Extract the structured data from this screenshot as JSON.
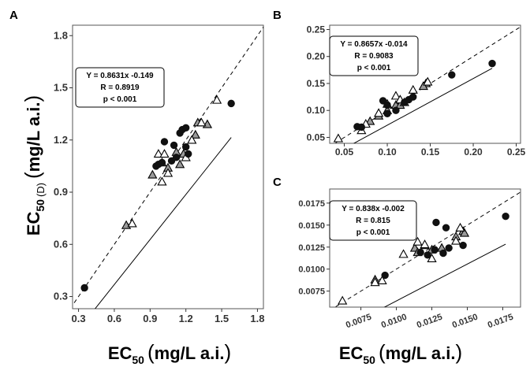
{
  "axis_title": {
    "x_prefix": "EC",
    "x_sub": "50",
    "x_unit": "mg/L a.i.",
    "y_prefix": "EC",
    "y_sub": "50",
    "y_inner": "(D)",
    "y_unit": "mg/L a.i."
  },
  "chart_data": [
    {
      "panel": "A",
      "type": "scatter",
      "xlabel": "EC50 (mg/L a.i.)",
      "ylabel": "EC50 (D) (mg/L a.i.)",
      "xlim": [
        0.25,
        1.85
      ],
      "ylim": [
        0.23,
        1.86
      ],
      "xticks": [
        0.3,
        0.6,
        0.9,
        1.2,
        1.5,
        1.8
      ],
      "yticks": [
        0.3,
        0.6,
        0.9,
        1.2,
        1.5,
        1.8
      ],
      "xtick_labels": [
        "0.3",
        "0.6",
        "0.9",
        "1.2",
        "1.5",
        "1.8"
      ],
      "ytick_labels": [
        "0.3",
        "0.6",
        "0.9",
        "1.2",
        "1.5",
        "1.8"
      ],
      "grid": false,
      "identity_line": true,
      "fit": {
        "slope": 0.8631,
        "intercept": -0.149,
        "x_range": [
          0.35,
          1.58
        ]
      },
      "annotation": [
        "Y = 0.8631x -0.149",
        "R = 0.8919",
        "p < 0.001"
      ],
      "series": [
        {
          "marker": "filled-circle",
          "points": [
            [
              0.35,
              0.35
            ],
            [
              0.95,
              1.05
            ],
            [
              0.97,
              1.06
            ],
            [
              1.0,
              1.07
            ],
            [
              1.02,
              1.19
            ],
            [
              1.1,
              1.17
            ],
            [
              1.15,
              1.24
            ],
            [
              1.17,
              1.26
            ],
            [
              1.2,
              1.27
            ],
            [
              1.2,
              1.16
            ],
            [
              1.22,
              1.12
            ],
            [
              1.08,
              1.08
            ],
            [
              1.12,
              1.1
            ],
            [
              1.58,
              1.41
            ]
          ]
        },
        {
          "marker": "grey-triangle",
          "points": [
            [
              0.7,
              0.71
            ],
            [
              0.92,
              1.0
            ],
            [
              1.0,
              1.07
            ],
            [
              1.05,
              1.04
            ],
            [
              1.12,
              1.13
            ],
            [
              1.15,
              1.06
            ],
            [
              1.18,
              1.12
            ],
            [
              1.28,
              1.23
            ],
            [
              1.3,
              1.3
            ],
            [
              1.38,
              1.29
            ]
          ]
        },
        {
          "marker": "open-triangle",
          "points": [
            [
              0.75,
              0.72
            ],
            [
              0.97,
              1.12
            ],
            [
              1.02,
              1.12
            ],
            [
              1.0,
              0.96
            ],
            [
              1.05,
              1.01
            ],
            [
              1.2,
              1.1
            ],
            [
              1.25,
              1.2
            ],
            [
              1.33,
              1.3
            ],
            [
              1.46,
              1.43
            ]
          ]
        }
      ]
    },
    {
      "panel": "B",
      "type": "scatter",
      "xlabel": "",
      "ylabel": "",
      "xlim": [
        0.033,
        0.255
      ],
      "ylim": [
        0.039,
        0.258
      ],
      "xticks": [
        0.05,
        0.1,
        0.15,
        0.2,
        0.25
      ],
      "yticks": [
        0.05,
        0.1,
        0.15,
        0.2,
        0.25
      ],
      "xtick_labels": [
        "0.05",
        "0.10",
        "0.15",
        "0.20",
        "0.25"
      ],
      "ytick_labels": [
        "0.05",
        "0.10",
        "0.15",
        "0.20",
        "0.25"
      ],
      "grid": false,
      "identity_line": true,
      "fit": {
        "slope": 0.8657,
        "intercept": -0.014,
        "x_range": [
          0.043,
          0.222
        ]
      },
      "annotation": [
        "Y = 0.8657x -0.014",
        "R = 0.9083",
        "p < 0.001"
      ],
      "series": [
        {
          "marker": "filled-circle",
          "points": [
            [
              0.065,
              0.07
            ],
            [
              0.07,
              0.069
            ],
            [
              0.095,
              0.118
            ],
            [
              0.1,
              0.11
            ],
            [
              0.1,
              0.094
            ],
            [
              0.11,
              0.1
            ],
            [
              0.12,
              0.115
            ],
            [
              0.125,
              0.12
            ],
            [
              0.13,
              0.125
            ],
            [
              0.175,
              0.166
            ],
            [
              0.222,
              0.187
            ]
          ]
        },
        {
          "marker": "grey-triangle",
          "points": [
            [
              0.08,
              0.08
            ],
            [
              0.09,
              0.09
            ],
            [
              0.1,
              0.1
            ],
            [
              0.11,
              0.11
            ],
            [
              0.115,
              0.11
            ],
            [
              0.12,
              0.115
            ],
            [
              0.145,
              0.15
            ],
            [
              0.142,
              0.145
            ]
          ]
        },
        {
          "marker": "open-triangle",
          "points": [
            [
              0.043,
              0.048
            ],
            [
              0.07,
              0.063
            ],
            [
              0.075,
              0.075
            ],
            [
              0.09,
              0.095
            ],
            [
              0.1,
              0.112
            ],
            [
              0.11,
              0.127
            ],
            [
              0.115,
              0.12
            ],
            [
              0.13,
              0.138
            ],
            [
              0.147,
              0.153
            ]
          ]
        }
      ]
    },
    {
      "panel": "C",
      "type": "scatter",
      "xlabel": "EC50 (mg/L a.i.)",
      "ylabel": "",
      "xlim": [
        0.0053,
        0.01875
      ],
      "ylim": [
        0.00568,
        0.0191
      ],
      "xticks": [
        0.0075,
        0.01,
        0.0125,
        0.015,
        0.0175
      ],
      "yticks": [
        0.0075,
        0.01,
        0.0125,
        0.015,
        0.0175
      ],
      "xtick_labels": [
        "0.0075",
        "0.0100",
        "0.0125",
        "0.0150",
        "0.0175"
      ],
      "ytick_labels": [
        "0.0075",
        "0.0100",
        "0.0125",
        "0.0150",
        "0.0175"
      ],
      "grid": false,
      "identity_line": true,
      "fit": {
        "slope": 0.838,
        "intercept": -0.002,
        "x_range": [
          0.0062,
          0.0177
        ]
      },
      "annotation": [
        "Y = 0.838x -0.002",
        "R = 0.815",
        "p < 0.001"
      ],
      "series": [
        {
          "marker": "filled-circle",
          "points": [
            [
              0.0092,
              0.0093
            ],
            [
              0.0117,
              0.0119
            ],
            [
              0.0122,
              0.0116
            ],
            [
              0.0127,
              0.0122
            ],
            [
              0.0128,
              0.0153
            ],
            [
              0.0135,
              0.0147
            ],
            [
              0.0137,
              0.0124
            ],
            [
              0.0133,
              0.0118
            ],
            [
              0.0147,
              0.0127
            ],
            [
              0.0177,
              0.016
            ]
          ]
        },
        {
          "marker": "grey-triangle",
          "points": [
            [
              0.0085,
              0.0088
            ],
            [
              0.0113,
              0.0124
            ],
            [
              0.0115,
              0.0119
            ],
            [
              0.012,
              0.0127
            ],
            [
              0.0125,
              0.0122
            ],
            [
              0.0132,
              0.0124
            ],
            [
              0.0142,
              0.0137
            ],
            [
              0.0147,
              0.0143
            ],
            [
              0.0148,
              0.0141
            ]
          ]
        },
        {
          "marker": "open-triangle",
          "points": [
            [
              0.0062,
              0.0064
            ],
            [
              0.0085,
              0.0085
            ],
            [
              0.009,
              0.0087
            ],
            [
              0.0105,
              0.0117
            ],
            [
              0.0115,
              0.0131
            ],
            [
              0.012,
              0.0128
            ],
            [
              0.0125,
              0.0112
            ],
            [
              0.0142,
              0.0132
            ],
            [
              0.0145,
              0.0147
            ]
          ]
        }
      ]
    }
  ]
}
